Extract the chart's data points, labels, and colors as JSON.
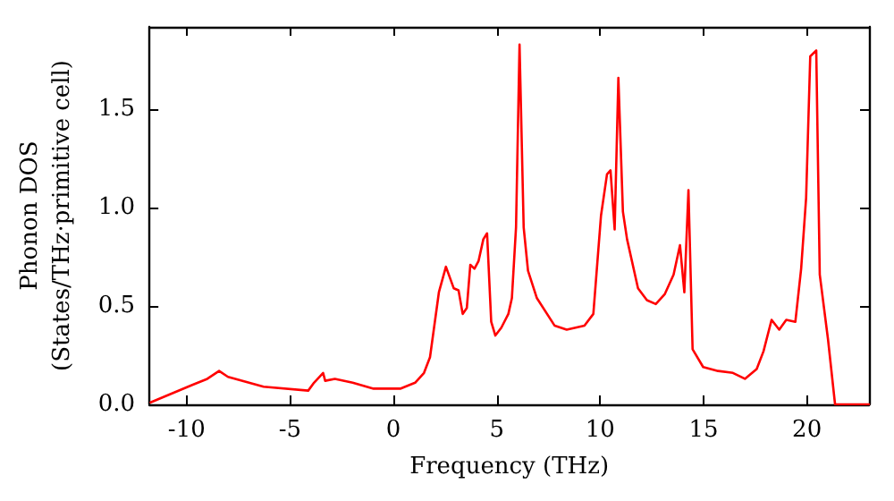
{
  "chart_data": {
    "type": "line",
    "xlabel": "Frequency (THz)",
    "ylabel": "Phonon DOS\n(States/THz·primitive cell)",
    "xlim": [
      -11.8,
      23
    ],
    "ylim": [
      0,
      1.92
    ],
    "xticks": [
      -10,
      -5,
      0,
      5,
      10,
      15,
      20
    ],
    "yticks": [
      {
        "value": 0,
        "label": "0.0"
      },
      {
        "value": 0.5,
        "label": "0.5"
      },
      {
        "value": 1,
        "label": "1.0"
      },
      {
        "value": 1.5,
        "label": "1.5"
      }
    ],
    "grid": false,
    "marker": "none",
    "line_style": "solid",
    "series": [
      {
        "color": "#ff0000",
        "x": [
          -11.74,
          -9.7,
          -9.0,
          -8.43,
          -8.0,
          -6.28,
          -4.12,
          -3.84,
          -3.4,
          -3.3,
          -2.83,
          -1.97,
          -0.96,
          0.33,
          1.05,
          1.48,
          1.77,
          2.2,
          2.54,
          2.92,
          3.15,
          3.35,
          3.55,
          3.72,
          3.92,
          4.12,
          4.35,
          4.53,
          4.73,
          4.93,
          5.22,
          5.56,
          5.73,
          5.93,
          6.1,
          6.3,
          6.51,
          6.94,
          7.8,
          8.38,
          9.24,
          9.67,
          10.04,
          10.33,
          10.5,
          10.7,
          10.88,
          11.1,
          11.3,
          11.83,
          12.26,
          12.69,
          13.12,
          13.55,
          13.86,
          14.07,
          14.27,
          14.47,
          14.98,
          15.7,
          16.42,
          17.0,
          17.57,
          17.9,
          18.29,
          18.66,
          19.0,
          19.44,
          19.72,
          19.96,
          20.16,
          20.45,
          20.62,
          21.02,
          21.36,
          23
        ],
        "values": [
          0.01,
          0.1,
          0.13,
          0.17,
          0.14,
          0.09,
          0.07,
          0.11,
          0.16,
          0.12,
          0.13,
          0.11,
          0.08,
          0.08,
          0.11,
          0.16,
          0.24,
          0.57,
          0.7,
          0.59,
          0.58,
          0.46,
          0.49,
          0.71,
          0.69,
          0.73,
          0.84,
          0.87,
          0.42,
          0.35,
          0.39,
          0.46,
          0.54,
          0.9,
          1.83,
          0.9,
          0.68,
          0.54,
          0.4,
          0.38,
          0.4,
          0.46,
          0.96,
          1.17,
          1.19,
          0.89,
          1.66,
          0.98,
          0.84,
          0.59,
          0.53,
          0.51,
          0.56,
          0.66,
          0.81,
          0.57,
          1.09,
          0.28,
          0.19,
          0.17,
          0.16,
          0.13,
          0.18,
          0.27,
          0.43,
          0.38,
          0.43,
          0.42,
          0.69,
          1.05,
          1.77,
          1.8,
          0.66,
          0.33,
          0,
          0
        ]
      }
    ]
  }
}
